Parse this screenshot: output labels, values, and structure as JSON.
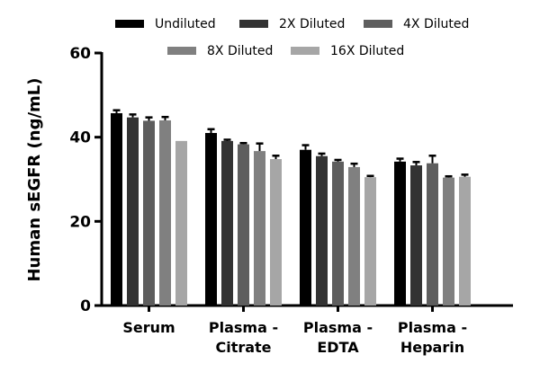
{
  "chart_data": {
    "type": "bar",
    "title": "",
    "xlabel": "",
    "ylabel": "Human sEGFR (ng/mL)",
    "ylim": [
      0,
      60
    ],
    "yticks": [
      "0",
      "20",
      "40",
      "60"
    ],
    "categories": [
      [
        "Serum"
      ],
      [
        "Plasma -",
        "Citrate"
      ],
      [
        "Plasma -",
        "EDTA"
      ],
      [
        "Plasma -",
        "Heparin"
      ]
    ],
    "legend_position": "top",
    "grid": false,
    "series": [
      {
        "name": "Undiluted",
        "color": "#000000",
        "values": [
          45.7,
          41.0,
          37.0,
          34.2
        ],
        "errors": [
          0.7,
          0.9,
          1.1,
          0.7
        ]
      },
      {
        "name": "2X Diluted",
        "color": "#333333",
        "values": [
          44.7,
          39.1,
          35.5,
          33.3
        ],
        "errors": [
          0.7,
          0.3,
          0.6,
          0.8
        ]
      },
      {
        "name": "4X Diluted",
        "color": "#5e5e5e",
        "values": [
          43.9,
          38.3,
          34.2,
          33.8
        ],
        "errors": [
          0.8,
          0.3,
          0.4,
          1.8
        ]
      },
      {
        "name": "8X Diluted",
        "color": "#808080",
        "values": [
          44.0,
          36.7,
          32.9,
          30.4
        ],
        "errors": [
          0.8,
          1.8,
          0.8,
          0.3
        ]
      },
      {
        "name": "16X Diluted",
        "color": "#a6a6a6",
        "values": [
          39.1,
          34.8,
          30.5,
          30.6
        ],
        "errors": [
          0,
          0.8,
          0.3,
          0.5
        ]
      }
    ]
  }
}
